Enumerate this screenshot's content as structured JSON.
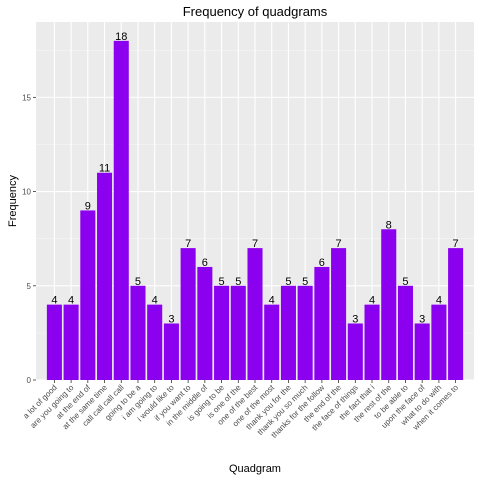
{
  "chart_data": {
    "type": "bar",
    "title": "Frequency of quadgrams",
    "xlabel": "Quadgram",
    "ylabel": "Frequency",
    "ylim": [
      0,
      19
    ],
    "yticks": [
      0,
      5,
      10,
      15
    ],
    "grid": true,
    "bar_color": "#8B00EE",
    "panel_color": "#EBEBEB",
    "categories": [
      "a lot of good",
      "are you going to",
      "at the end of",
      "at the same time",
      "call call call call",
      "going to be a",
      "i am going to",
      "i would like to",
      "if you want to",
      "in the middle of",
      "is going to be",
      "is one of the",
      "one of the best",
      "one of the most",
      "thank you for the",
      "thank you so much",
      "thanks for the follow",
      "the end of the",
      "the face of things",
      "the fact that i",
      "the rest of the",
      "to be able to",
      "upon the face of",
      "what to do with",
      "when it comes to"
    ],
    "values": [
      4,
      4,
      9,
      11,
      18,
      5,
      4,
      3,
      7,
      6,
      5,
      5,
      7,
      4,
      5,
      5,
      6,
      7,
      3,
      4,
      8,
      5,
      3,
      4,
      7
    ]
  }
}
